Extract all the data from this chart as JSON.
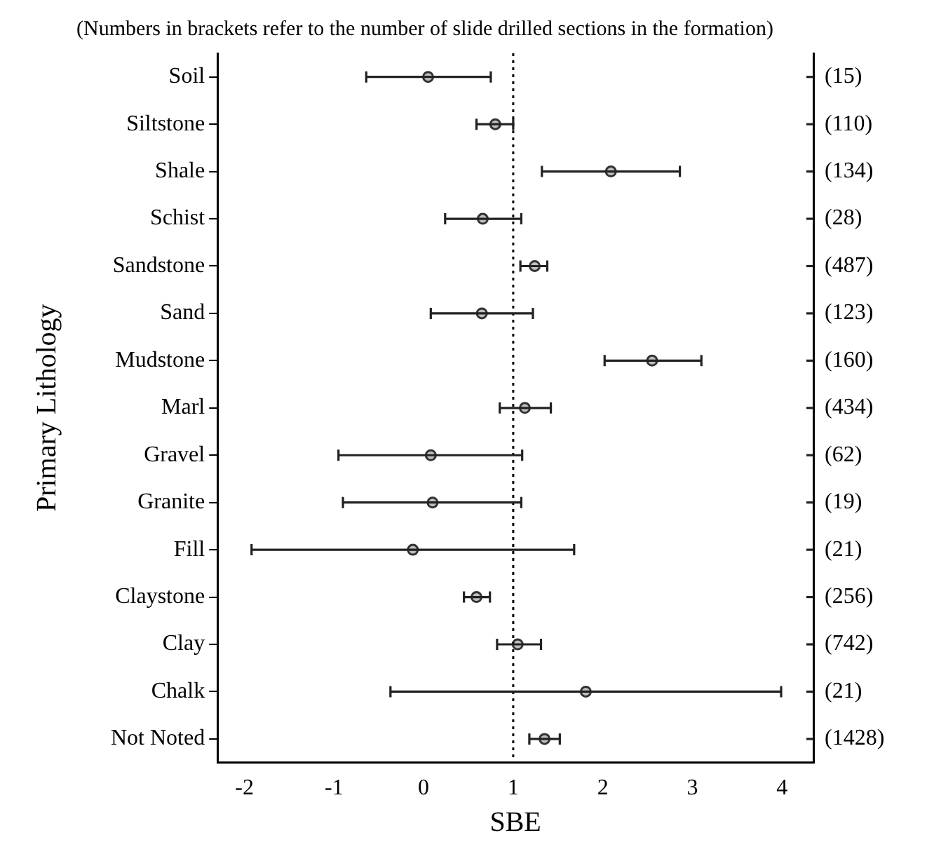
{
  "chart_data": {
    "type": "scatter",
    "orientation": "horizontal",
    "title": "(Numbers in brackets refer to the number of slide drilled sections in the formation)",
    "xlabel": "SBE",
    "ylabel": "Primary Lithology",
    "categories": [
      "Soil",
      "Siltstone",
      "Shale",
      "Schist",
      "Sandstone",
      "Sand",
      "Mudstone",
      "Marl",
      "Gravel",
      "Granite",
      "Fill",
      "Claystone",
      "Clay",
      "Chalk",
      "Not Noted"
    ],
    "values": [
      0.05,
      0.8,
      2.09,
      0.66,
      1.24,
      0.65,
      2.55,
      1.13,
      0.08,
      0.1,
      -0.12,
      0.59,
      1.05,
      1.81,
      1.35
    ],
    "errors": [
      [
        -0.64,
        0.75
      ],
      [
        0.59,
        1.0
      ],
      [
        1.32,
        2.86
      ],
      [
        0.24,
        1.09
      ],
      [
        1.08,
        1.38
      ],
      [
        0.08,
        1.22
      ],
      [
        2.02,
        3.1
      ],
      [
        0.85,
        1.42
      ],
      [
        -0.95,
        1.1
      ],
      [
        -0.9,
        1.09
      ],
      [
        -1.92,
        1.68
      ],
      [
        0.45,
        0.74
      ],
      [
        0.82,
        1.31
      ],
      [
        -0.37,
        3.99
      ],
      [
        1.18,
        1.52
      ]
    ],
    "color": "#333333",
    "marker": "circle",
    "grid": false,
    "legend": false,
    "xlim": [
      -2.3,
      4.35
    ],
    "xticks": [
      -2,
      -1,
      0,
      1,
      2,
      3,
      4
    ],
    "ref_lines": [
      {
        "axis": "x",
        "value": 1,
        "line_style": "dotted",
        "color": "#000000"
      }
    ],
    "annotations": [
      "(15)",
      "(110)",
      "(134)",
      "(28)",
      "(487)",
      "(123)",
      "(160)",
      "(434)",
      "(62)",
      "(19)",
      "(21)",
      "(256)",
      "(742)",
      "(21)",
      "(1428)"
    ]
  }
}
